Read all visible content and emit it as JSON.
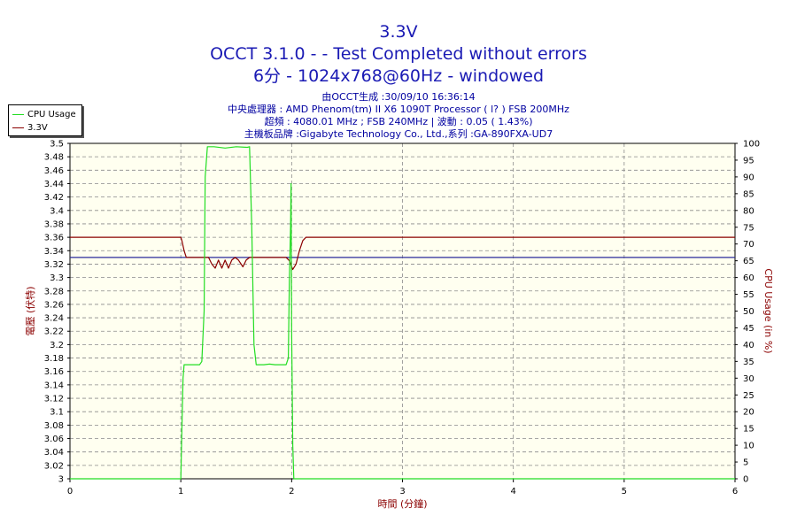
{
  "header": {
    "title": "3.3V",
    "subtitle": "OCCT 3.1.0 -  - Test Completed without errors",
    "subtitle2": "6分 - 1024x768@60Hz - windowed",
    "info": [
      "由OCCT生成 :30/09/10 16:36:14",
      "中央處理器 : AMD Phenom(tm) II X6 1090T Processor (   l? ) FSB 200MHz",
      "超頻 : 4080.01 MHz ; FSB 240MHz | 波動 : 0.05 ( 1.43%)",
      "主機板品牌 :Gigabyte Technology Co., Ltd.,系列 :GA-890FXA-UD7"
    ]
  },
  "legend": [
    {
      "label": "CPU Usage",
      "color": "#22dd22"
    },
    {
      "label": "3.3V",
      "color": "#8b0000"
    }
  ],
  "chart_data": {
    "type": "line",
    "xlabel": "時間 (分鐘)",
    "ylabel_left": "電壓 (伏特)",
    "ylabel_right": "CPU Usage (in %)",
    "xlim": [
      0,
      6
    ],
    "ylim_left": [
      3.0,
      3.5
    ],
    "ylim_right": [
      0,
      100
    ],
    "x_ticks": [
      "0",
      "1",
      "2",
      "3",
      "4",
      "5",
      "6"
    ],
    "y_left_ticks": [
      "3",
      "3.02",
      "3.04",
      "3.06",
      "3.08",
      "3.1",
      "3.12",
      "3.14",
      "3.16",
      "3.18",
      "3.2",
      "3.22",
      "3.24",
      "3.26",
      "3.28",
      "3.3",
      "3.32",
      "3.34",
      "3.36",
      "3.38",
      "3.4",
      "3.42",
      "3.44",
      "3.46",
      "3.48",
      "3.5"
    ],
    "y_right_ticks": [
      "0",
      "5",
      "10",
      "15",
      "20",
      "25",
      "30",
      "35",
      "40",
      "45",
      "50",
      "55",
      "60",
      "65",
      "70",
      "75",
      "80",
      "85",
      "90",
      "95",
      "100"
    ],
    "grid": true,
    "legend_position": "top-left",
    "reference_line": {
      "axis": "left",
      "value": 3.33,
      "color": "#2a2a9a"
    },
    "series": [
      {
        "name": "3.3V",
        "axis": "left",
        "color": "#8b0000",
        "x": [
          0,
          1.0,
          1.01,
          1.03,
          1.05,
          1.1,
          1.25,
          1.28,
          1.31,
          1.34,
          1.37,
          1.4,
          1.43,
          1.46,
          1.49,
          1.52,
          1.56,
          1.59,
          1.62,
          1.65,
          1.7,
          1.95,
          1.98,
          2.01,
          2.04,
          2.07,
          2.1,
          2.13,
          6
        ],
        "values": [
          3.36,
          3.36,
          3.355,
          3.34,
          3.33,
          3.33,
          3.33,
          3.32,
          3.314,
          3.326,
          3.314,
          3.326,
          3.314,
          3.326,
          3.33,
          3.326,
          3.316,
          3.326,
          3.33,
          3.33,
          3.33,
          3.33,
          3.325,
          3.312,
          3.32,
          3.34,
          3.355,
          3.36,
          3.36
        ]
      },
      {
        "name": "CPU Usage",
        "axis": "right",
        "color": "#22dd22",
        "x": [
          0,
          0.99,
          1.0,
          1.01,
          1.02,
          1.03,
          1.05,
          1.1,
          1.15,
          1.17,
          1.19,
          1.21,
          1.22,
          1.24,
          1.3,
          1.4,
          1.5,
          1.6,
          1.62,
          1.64,
          1.66,
          1.68,
          1.7,
          1.75,
          1.8,
          1.85,
          1.9,
          1.95,
          1.97,
          1.98,
          1.99,
          1.995,
          2.0,
          2.01,
          2.02,
          2.03,
          6
        ],
        "values": [
          0,
          0,
          0,
          15,
          30,
          34,
          34,
          34,
          34,
          34,
          35,
          50,
          90,
          99,
          99,
          98.6,
          99,
          98.8,
          99,
          75,
          40,
          34,
          34,
          34,
          34.2,
          34,
          34,
          34,
          36,
          60,
          75,
          88,
          45,
          10,
          0,
          0,
          0
        ]
      }
    ]
  }
}
